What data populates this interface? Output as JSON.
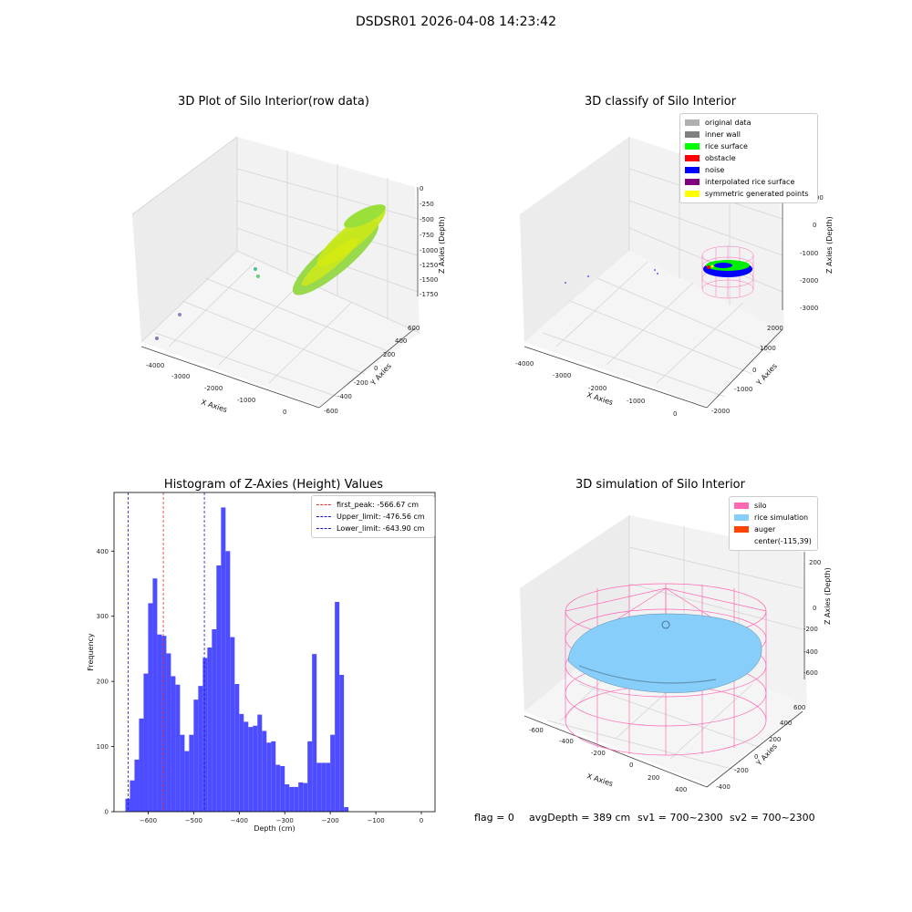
{
  "suptitle": "DSDSR01 2026-04-08 14:23:42",
  "footer": {
    "flag": "flag = 0",
    "avg_depth": "avgDepth = 389 cm",
    "sv1": "sv1 = 700~2300",
    "sv2": "sv2 = 700~2300"
  },
  "colors": {
    "hist_bar": "#4d4dff",
    "peak_line": "#e03030",
    "limit_line": "#1a1acc",
    "silo": "#ff69b4",
    "rice_simulation": "#87cefa",
    "auger": "#ff4500",
    "rice_surface": "#00ff00",
    "noise": "#0000ff"
  },
  "chart_data": [
    {
      "type": "scatter",
      "title": "3D Plot of Silo Interior(row data)",
      "xlabel": "X Axies",
      "ylabel": "Y Axies",
      "zlabel": "Z Axies (Depth)",
      "x_ticks": [
        "-4000",
        "-3000",
        "-2000",
        "-1000",
        "0"
      ],
      "y_ticks": [
        "-600",
        "-400",
        "-200",
        "0",
        "200",
        "400",
        "600"
      ],
      "z_ticks": [
        "0",
        "-250",
        "-500",
        "-750",
        "-1000",
        "-1250",
        "-1500",
        "-1750"
      ]
    },
    {
      "type": "scatter",
      "title": "3D classify of Silo Interior",
      "xlabel": "X Axies",
      "ylabel": "Y Axies",
      "zlabel": "Z Axies (Depth)",
      "x_ticks": [
        "-4000",
        "-3000",
        "-2000",
        "-1000",
        "0"
      ],
      "y_ticks": [
        "-2000",
        "-1000",
        "0",
        "1000",
        "2000"
      ],
      "z_ticks": [
        "1000",
        "0",
        "-1000",
        "-2000",
        "-3000"
      ],
      "legend": [
        {
          "label": "original data",
          "color": "#b0b0b0"
        },
        {
          "label": "inner wall",
          "color": "#808080"
        },
        {
          "label": "rice surface",
          "color": "#00ff00"
        },
        {
          "label": "obstacle",
          "color": "#ff0000"
        },
        {
          "label": "noise",
          "color": "#0000ff"
        },
        {
          "label": "interpolated rice surface",
          "color": "#800080"
        },
        {
          "label": "symmetric generated points",
          "color": "#ffff00"
        }
      ]
    },
    {
      "type": "bar",
      "title": "Histogram of Z-Axies (Height) Values",
      "xlabel": "Depth (cm)",
      "ylabel": "Frequency",
      "xlim": [
        -675,
        30
      ],
      "ylim": [
        0,
        490
      ],
      "x_ticks": [
        -600,
        -500,
        -400,
        -300,
        -200,
        -100,
        0
      ],
      "y_ticks": [
        0,
        100,
        200,
        300,
        400
      ],
      "bin_start": -650,
      "bin_width": 10,
      "values": [
        20,
        48,
        80,
        143,
        212,
        320,
        358,
        272,
        270,
        243,
        208,
        195,
        118,
        93,
        118,
        172,
        193,
        236,
        252,
        280,
        378,
        467,
        400,
        268,
        196,
        150,
        138,
        130,
        132,
        149,
        124,
        106,
        108,
        72,
        70,
        42,
        38,
        38,
        45,
        44,
        108,
        242,
        75,
        75,
        75,
        118,
        322,
        210,
        7
      ],
      "vlines": [
        {
          "label": "first_peak: -566.67 cm",
          "x": -566.67,
          "color": "#e03030"
        },
        {
          "label": "Upper_limit: -476.56 cm",
          "x": -476.56,
          "color": "#1a1acc"
        },
        {
          "label": "Lower_limit: -643.90 cm",
          "x": -643.9,
          "color": "#1a1acc"
        }
      ],
      "legend_position": "top-right"
    },
    {
      "type": "area",
      "title": "3D simulation of Silo Interior",
      "xlabel": "X Axies",
      "ylabel": "Y Axies",
      "zlabel": "Z Axies (Depth)",
      "x_ticks": [
        "-600",
        "-400",
        "-200",
        "0",
        "200",
        "400"
      ],
      "y_ticks": [
        "-400",
        "-200",
        "0",
        "200",
        "400",
        "600"
      ],
      "z_ticks": [
        "200",
        "0",
        "-200",
        "-400",
        "-600"
      ],
      "legend": [
        {
          "label": "silo",
          "color": "#ff69b4"
        },
        {
          "label": "rice simulation",
          "color": "#87cefa"
        },
        {
          "label": "auger",
          "color": "#ff4500"
        },
        {
          "label": "center(-115,39)",
          "color": ""
        }
      ]
    }
  ]
}
